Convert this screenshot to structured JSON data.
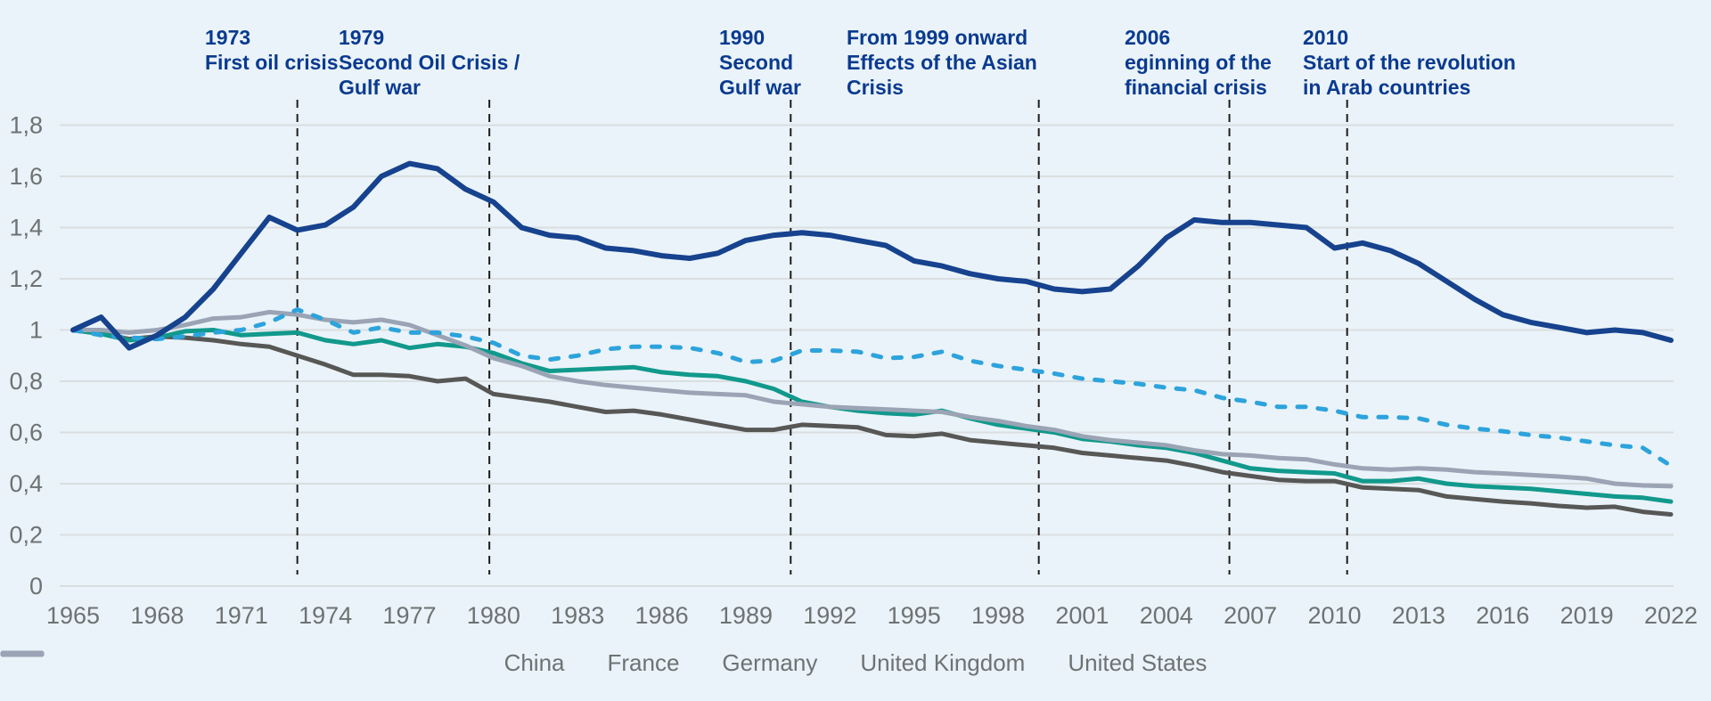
{
  "chart_data": {
    "type": "line",
    "x_start": 1965,
    "x_end": 2022,
    "xtick_labels": [
      "1965",
      "1968",
      "1971",
      "1974",
      "1977",
      "1980",
      "1983",
      "1986",
      "1989",
      "1992",
      "1995",
      "1998",
      "2001",
      "2004",
      "2007",
      "2010",
      "2013",
      "2016",
      "2019",
      "2022"
    ],
    "ytick_labels": [
      "0",
      "0,2",
      "0,4",
      "0,6",
      "0,8",
      "1",
      "1,2",
      "1,4",
      "1,6",
      "1,8"
    ],
    "ylim": [
      0,
      1.8
    ],
    "ytick_step": 0.2,
    "grid": true,
    "legend_position": "bottom",
    "series": [
      {
        "name": "United Kingdom",
        "color": "#575756",
        "dash": false,
        "values": [
          1.0,
          0.985,
          0.965,
          0.975,
          0.97,
          0.96,
          0.945,
          0.935,
          0.9,
          0.865,
          0.825,
          0.825,
          0.82,
          0.8,
          0.81,
          0.75,
          0.735,
          0.72,
          0.7,
          0.68,
          0.685,
          0.67,
          0.65,
          0.63,
          0.61,
          0.61,
          0.63,
          0.625,
          0.62,
          0.59,
          0.585,
          0.595,
          0.57,
          0.56,
          0.55,
          0.54,
          0.52,
          0.51,
          0.5,
          0.49,
          0.47,
          0.445,
          0.43,
          0.415,
          0.41,
          0.41,
          0.385,
          0.38,
          0.375,
          0.35,
          0.34,
          0.33,
          0.323,
          0.313,
          0.306,
          0.31,
          0.29,
          0.28
        ]
      },
      {
        "name": "Germany",
        "color": "#11998C",
        "dash": false,
        "values": [
          1.0,
          0.985,
          0.96,
          0.97,
          0.995,
          1.0,
          0.98,
          0.985,
          0.99,
          0.96,
          0.945,
          0.96,
          0.93,
          0.945,
          0.935,
          0.91,
          0.87,
          0.84,
          0.845,
          0.85,
          0.855,
          0.835,
          0.825,
          0.82,
          0.8,
          0.77,
          0.72,
          0.7,
          0.685,
          0.675,
          0.67,
          0.685,
          0.655,
          0.63,
          0.615,
          0.6,
          0.575,
          0.565,
          0.55,
          0.54,
          0.52,
          0.49,
          0.46,
          0.45,
          0.445,
          0.44,
          0.41,
          0.41,
          0.42,
          0.4,
          0.39,
          0.385,
          0.38,
          0.37,
          0.36,
          0.35,
          0.345,
          0.33
        ]
      },
      {
        "name": "United States",
        "color": "#9AA4B5",
        "dash": false,
        "values": [
          1.0,
          1.0,
          0.99,
          1.0,
          1.02,
          1.045,
          1.05,
          1.07,
          1.06,
          1.04,
          1.03,
          1.04,
          1.02,
          0.98,
          0.94,
          0.89,
          0.86,
          0.82,
          0.8,
          0.785,
          0.775,
          0.765,
          0.755,
          0.75,
          0.745,
          0.72,
          0.71,
          0.7,
          0.695,
          0.69,
          0.685,
          0.68,
          0.66,
          0.645,
          0.625,
          0.61,
          0.585,
          0.57,
          0.56,
          0.55,
          0.53,
          0.515,
          0.51,
          0.5,
          0.495,
          0.475,
          0.46,
          0.455,
          0.46,
          0.455,
          0.445,
          0.44,
          0.434,
          0.428,
          0.42,
          0.4,
          0.393,
          0.39
        ]
      },
      {
        "name": "France",
        "color": "#2DA3DC",
        "dash": true,
        "values": [
          1.0,
          0.98,
          0.97,
          0.965,
          0.975,
          0.99,
          1.0,
          1.03,
          1.08,
          1.04,
          0.99,
          1.01,
          0.99,
          0.99,
          0.975,
          0.95,
          0.9,
          0.885,
          0.9,
          0.925,
          0.935,
          0.935,
          0.93,
          0.91,
          0.875,
          0.88,
          0.92,
          0.92,
          0.915,
          0.89,
          0.895,
          0.915,
          0.88,
          0.86,
          0.845,
          0.83,
          0.81,
          0.8,
          0.79,
          0.775,
          0.765,
          0.735,
          0.72,
          0.7,
          0.7,
          0.685,
          0.66,
          0.66,
          0.655,
          0.63,
          0.615,
          0.605,
          0.59,
          0.58,
          0.565,
          0.55,
          0.54,
          0.47
        ]
      },
      {
        "name": "China",
        "color": "#16428E",
        "dash": false,
        "values": [
          1.0,
          1.05,
          0.93,
          0.98,
          1.05,
          1.16,
          1.3,
          1.44,
          1.39,
          1.41,
          1.48,
          1.6,
          1.65,
          1.63,
          1.55,
          1.5,
          1.4,
          1.37,
          1.36,
          1.32,
          1.31,
          1.29,
          1.28,
          1.3,
          1.35,
          1.37,
          1.38,
          1.37,
          1.35,
          1.33,
          1.27,
          1.25,
          1.22,
          1.2,
          1.19,
          1.16,
          1.15,
          1.16,
          1.25,
          1.36,
          1.43,
          1.42,
          1.42,
          1.41,
          1.4,
          1.32,
          1.34,
          1.31,
          1.26,
          1.19,
          1.12,
          1.06,
          1.03,
          1.01,
          0.99,
          1.0,
          0.99,
          0.96
        ]
      }
    ],
    "legend_order": [
      "China",
      "France",
      "Germany",
      "United Kingdom",
      "United States"
    ],
    "annotations": [
      {
        "axis_year": 1973.0,
        "lines": [
          "1973",
          "First oil crisis"
        ]
      },
      {
        "axis_year": 1979.85,
        "lines": [
          "1979",
          "Second Oil Crisis /",
          "Gulf war"
        ]
      },
      {
        "axis_year": 1990.6,
        "lines": [
          "1990",
          "Second",
          "Gulf war"
        ]
      },
      {
        "axis_year": 1999.45,
        "lines": [
          "From 1999 onward",
          "Effects of the Asian",
          "Crisis"
        ]
      },
      {
        "axis_year": 2006.25,
        "lines": [
          "2006",
          "eginning of the",
          "financial crisis"
        ]
      },
      {
        "axis_year": 2010.45,
        "lines": [
          "2010",
          "Start of the revolution",
          "in Arab countries"
        ]
      }
    ]
  },
  "colors": {
    "background": "#EAF3F9",
    "gridline": "#D9DEE0",
    "tick_text": "#6E7273",
    "annotation_text": "#0A3A8F",
    "event_line": "#1D1D1B"
  }
}
